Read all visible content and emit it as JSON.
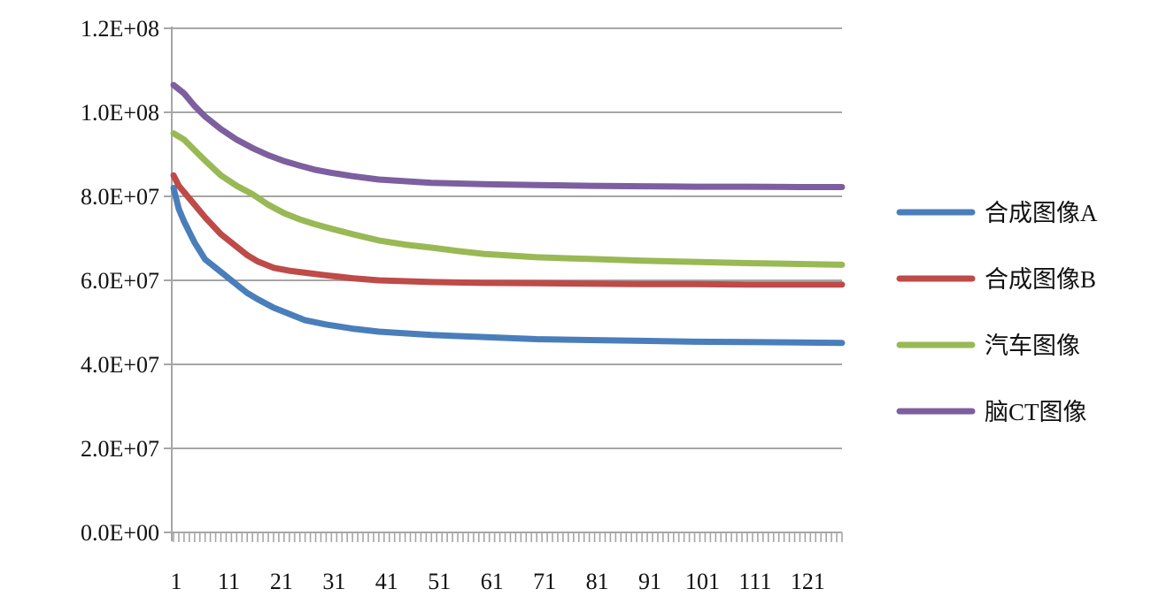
{
  "chart_data": {
    "type": "line",
    "title": "",
    "xlabel": "",
    "ylabel": "",
    "ylim": [
      0,
      120000000
    ],
    "xlim": [
      1,
      128
    ],
    "grid": true,
    "legend_position": "right",
    "y_ticks": [
      "0.0E+00",
      "2.0E+07",
      "4.0E+07",
      "6.0E+07",
      "8.0E+07",
      "1.0E+08",
      "1.2E+08"
    ],
    "y_tick_values": [
      0,
      20000000,
      40000000,
      60000000,
      80000000,
      100000000,
      120000000
    ],
    "x_ticks": [
      "1",
      "11",
      "21",
      "31",
      "41",
      "51",
      "61",
      "71",
      "81",
      "91",
      "101",
      "111",
      "121"
    ],
    "x_tick_values": [
      1,
      11,
      21,
      31,
      41,
      51,
      61,
      71,
      81,
      91,
      101,
      111,
      121
    ],
    "series": [
      {
        "name": "合成图像A",
        "color": "#4A7EBB",
        "x": [
          1,
          2,
          3,
          5,
          7,
          10,
          13,
          15,
          17,
          20,
          23,
          26,
          30,
          35,
          40,
          50,
          60,
          70,
          80,
          90,
          100,
          110,
          120,
          128
        ],
        "values": [
          82000000,
          77000000,
          74000000,
          69000000,
          65000000,
          62000000,
          59000000,
          57000000,
          55500000,
          53500000,
          52000000,
          50500000,
          49500000,
          48500000,
          47800000,
          47000000,
          46500000,
          46000000,
          45800000,
          45600000,
          45400000,
          45300000,
          45200000,
          45100000
        ]
      },
      {
        "name": "合成图像B",
        "color": "#BE4B48",
        "x": [
          1,
          2,
          3,
          5,
          7,
          10,
          13,
          15,
          17,
          20,
          23,
          26,
          30,
          35,
          40,
          50,
          60,
          70,
          80,
          90,
          100,
          110,
          120,
          128
        ],
        "values": [
          85000000,
          82500000,
          81000000,
          78000000,
          75000000,
          71000000,
          68000000,
          66000000,
          64500000,
          63000000,
          62300000,
          61800000,
          61200000,
          60500000,
          60000000,
          59600000,
          59400000,
          59300000,
          59200000,
          59100000,
          59100000,
          59000000,
          59000000,
          59000000
        ]
      },
      {
        "name": "汽车图像",
        "color": "#98B954",
        "x": [
          1,
          3,
          5,
          7,
          10,
          13,
          16,
          19,
          22,
          25,
          28,
          31,
          35,
          40,
          45,
          50,
          55,
          60,
          70,
          80,
          90,
          100,
          110,
          120,
          128
        ],
        "values": [
          95000000,
          93500000,
          91000000,
          88500000,
          85000000,
          82500000,
          80500000,
          78000000,
          76000000,
          74500000,
          73300000,
          72300000,
          71000000,
          69500000,
          68500000,
          67800000,
          67000000,
          66300000,
          65500000,
          65100000,
          64700000,
          64400000,
          64100000,
          63900000,
          63700000
        ]
      },
      {
        "name": "脑CT图像",
        "color": "#7D5FA0",
        "x": [
          1,
          3,
          5,
          7,
          10,
          13,
          16,
          19,
          22,
          25,
          28,
          31,
          35,
          40,
          45,
          50,
          60,
          70,
          80,
          90,
          100,
          110,
          120,
          128
        ],
        "values": [
          106500000,
          104500000,
          101500000,
          99000000,
          96000000,
          93500000,
          91500000,
          89800000,
          88400000,
          87300000,
          86300000,
          85600000,
          84800000,
          84000000,
          83600000,
          83200000,
          82900000,
          82700000,
          82500000,
          82400000,
          82300000,
          82300000,
          82200000,
          82200000
        ]
      }
    ]
  }
}
